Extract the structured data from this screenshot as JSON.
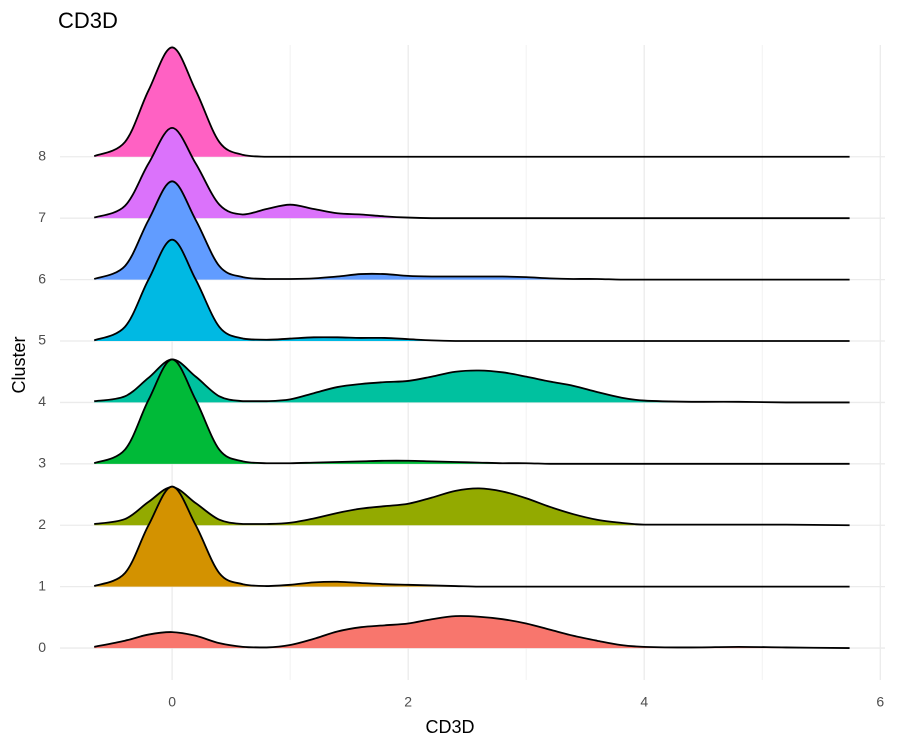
{
  "chart_data": {
    "type": "ridgeline",
    "title": "CD3D",
    "x_label": "CD3D",
    "y_label": "Cluster",
    "x": [
      -0.66,
      -0.4,
      -0.2,
      0,
      0.2,
      0.4,
      0.6,
      0.8,
      1.0,
      1.2,
      1.4,
      1.6,
      1.8,
      2.0,
      2.2,
      2.4,
      2.6,
      2.8,
      3.0,
      3.2,
      3.4,
      3.6,
      3.8,
      4.0,
      4.4,
      4.8,
      5.2,
      5.74
    ],
    "series": [
      {
        "name": "0",
        "color": "#f8766d",
        "values": [
          0.02,
          0.12,
          0.22,
          0.26,
          0.2,
          0.08,
          0.02,
          0.01,
          0.05,
          0.15,
          0.27,
          0.34,
          0.37,
          0.4,
          0.47,
          0.52,
          0.51,
          0.47,
          0.4,
          0.3,
          0.2,
          0.12,
          0.05,
          0.02,
          0.01,
          0.02,
          0.01,
          0
        ]
      },
      {
        "name": "1",
        "color": "#d39200",
        "values": [
          0.01,
          0.22,
          1.0,
          1.63,
          1.0,
          0.22,
          0.04,
          0.01,
          0.03,
          0.07,
          0.08,
          0.06,
          0.04,
          0.03,
          0.02,
          0.01,
          0,
          0,
          0,
          0,
          0,
          0,
          0,
          0,
          0,
          0,
          0,
          0
        ]
      },
      {
        "name": "2",
        "color": "#93aa00",
        "values": [
          0.02,
          0.1,
          0.38,
          0.62,
          0.36,
          0.09,
          0.02,
          0.02,
          0.04,
          0.11,
          0.2,
          0.27,
          0.31,
          0.35,
          0.45,
          0.56,
          0.6,
          0.55,
          0.44,
          0.3,
          0.18,
          0.09,
          0.04,
          0.01,
          0.01,
          0.01,
          0.01,
          0
        ]
      },
      {
        "name": "3",
        "color": "#00ba38",
        "values": [
          0.01,
          0.23,
          1.04,
          1.7,
          1.04,
          0.23,
          0.04,
          0.01,
          0.01,
          0.02,
          0.03,
          0.04,
          0.05,
          0.05,
          0.04,
          0.03,
          0.02,
          0.01,
          0.01,
          0,
          0,
          0,
          0,
          0,
          0,
          0,
          0,
          0
        ]
      },
      {
        "name": "4",
        "color": "#00c19f",
        "values": [
          0.02,
          0.1,
          0.4,
          0.7,
          0.42,
          0.1,
          0.02,
          0.02,
          0.05,
          0.15,
          0.25,
          0.3,
          0.33,
          0.35,
          0.42,
          0.5,
          0.52,
          0.49,
          0.42,
          0.34,
          0.27,
          0.17,
          0.08,
          0.03,
          0.01,
          0.01,
          0,
          0
        ]
      },
      {
        "name": "5",
        "color": "#00b9e3",
        "values": [
          0.01,
          0.23,
          1.0,
          1.65,
          1.0,
          0.23,
          0.04,
          0.02,
          0.04,
          0.06,
          0.06,
          0.05,
          0.05,
          0.03,
          0.01,
          0,
          0,
          0,
          0,
          0,
          0,
          0,
          0,
          0,
          0,
          0,
          0,
          0
        ]
      },
      {
        "name": "6",
        "color": "#619cff",
        "values": [
          0.01,
          0.22,
          0.97,
          1.6,
          0.97,
          0.22,
          0.04,
          0.01,
          0.01,
          0.02,
          0.05,
          0.09,
          0.09,
          0.06,
          0.05,
          0.05,
          0.05,
          0.05,
          0.04,
          0.02,
          0.01,
          0.01,
          0,
          0,
          0,
          0,
          0,
          0
        ]
      },
      {
        "name": "7",
        "color": "#db72fb",
        "values": [
          0.01,
          0.2,
          0.89,
          1.47,
          0.89,
          0.22,
          0.06,
          0.15,
          0.22,
          0.15,
          0.08,
          0.06,
          0.03,
          0.01,
          0,
          0,
          0,
          0,
          0,
          0,
          0,
          0,
          0,
          0,
          0,
          0,
          0,
          0
        ]
      },
      {
        "name": "8",
        "color": "#ff61c3",
        "values": [
          0.01,
          0.24,
          1.08,
          1.78,
          1.08,
          0.24,
          0.03,
          0,
          0,
          0,
          0,
          0,
          0,
          0,
          0,
          0,
          0,
          0,
          0,
          0,
          0,
          0,
          0,
          0,
          0,
          0,
          0,
          0
        ]
      }
    ],
    "xlim": [
      -0.95,
      6.04
    ],
    "xticks": [
      0,
      2,
      4,
      6
    ],
    "x_minor_ticks": [
      1,
      3,
      5
    ],
    "ylim": [
      -0.52,
      9.82
    ],
    "grid": true
  }
}
